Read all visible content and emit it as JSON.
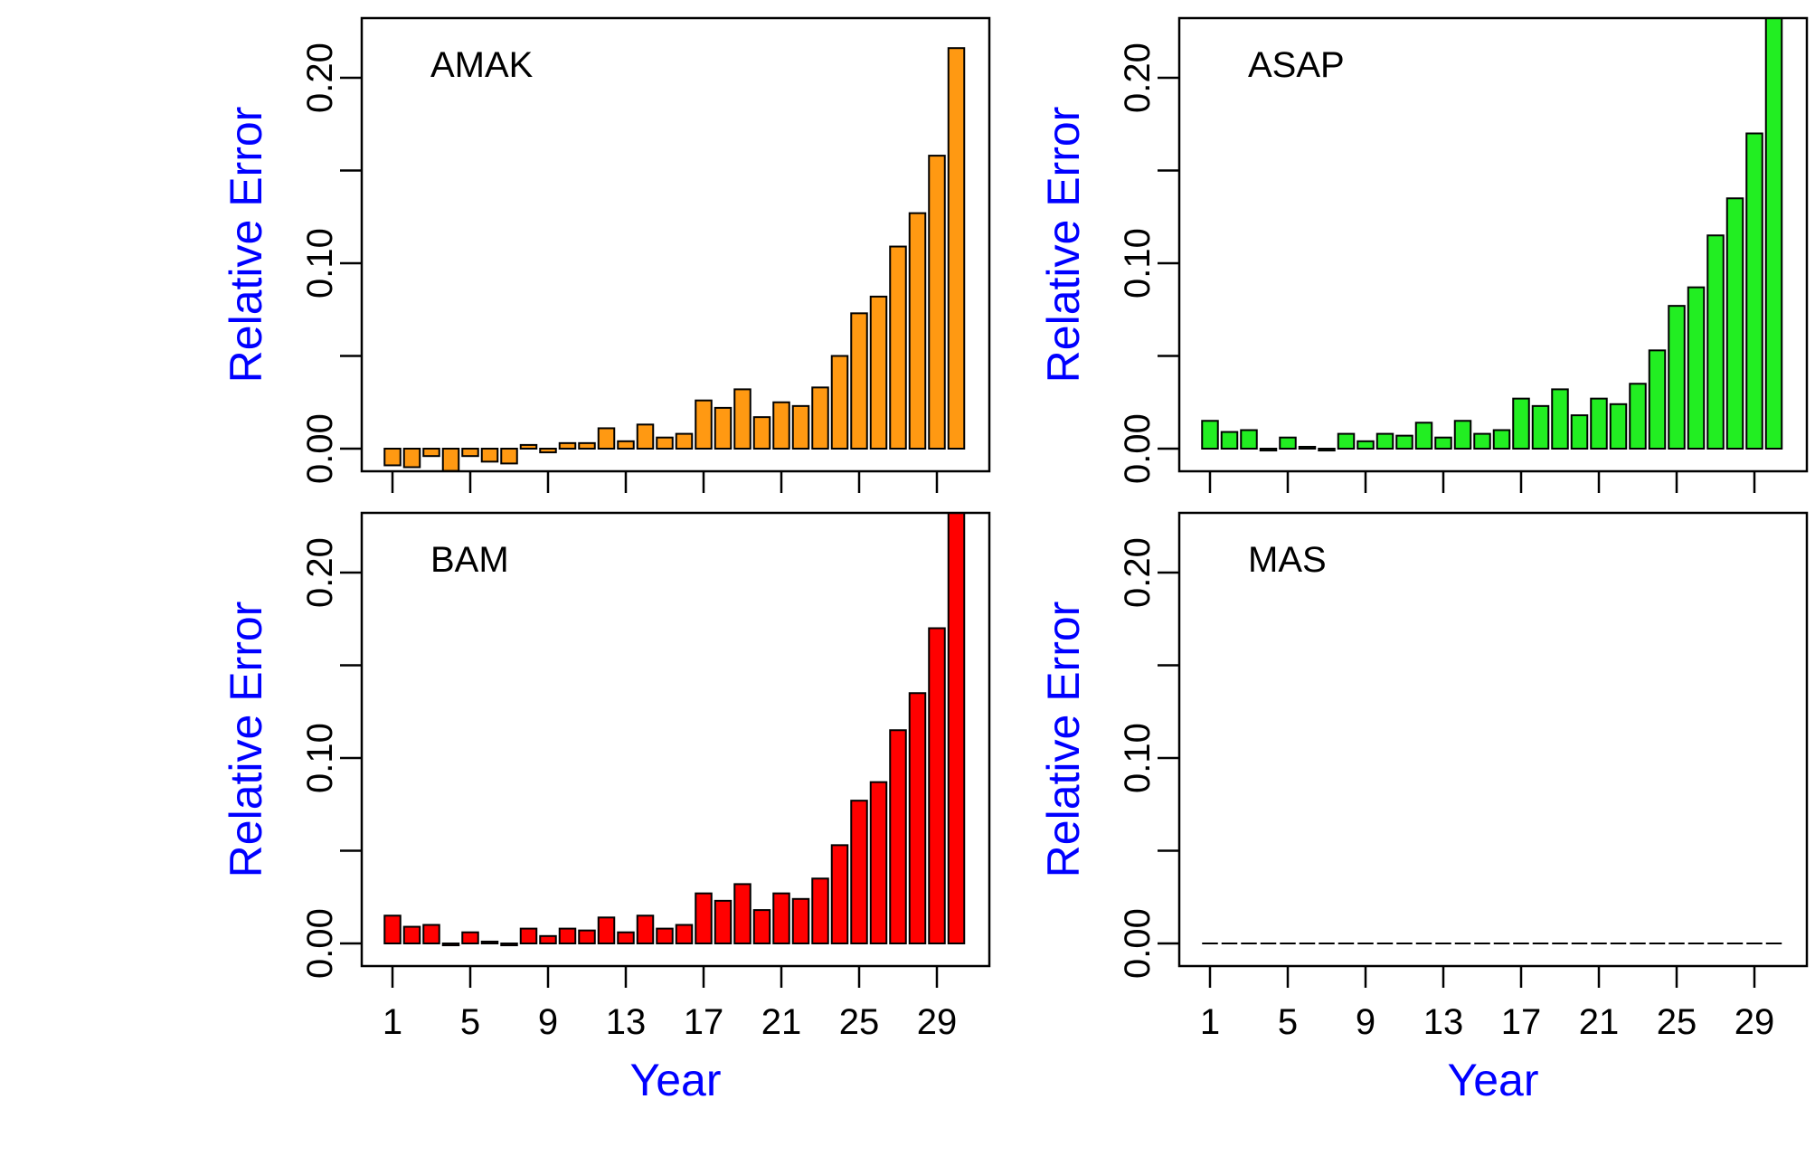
{
  "figure": {
    "axis_title_color": "#0000FF",
    "frame_color": "#000000"
  },
  "chart_data": [
    {
      "type": "bar",
      "panel_label": "AMAK",
      "fill": "#FF9912",
      "x": [
        1,
        2,
        3,
        4,
        5,
        6,
        7,
        8,
        9,
        10,
        11,
        12,
        13,
        14,
        15,
        16,
        17,
        18,
        19,
        20,
        21,
        22,
        23,
        24,
        25,
        26,
        27,
        28,
        29,
        30
      ],
      "values": [
        -0.009,
        -0.01,
        -0.004,
        -0.012,
        -0.004,
        -0.007,
        -0.008,
        0.002,
        -0.002,
        0.003,
        0.003,
        0.011,
        0.004,
        0.013,
        0.006,
        0.008,
        0.026,
        0.022,
        0.032,
        0.017,
        0.025,
        0.023,
        0.033,
        0.05,
        0.073,
        0.082,
        0.109,
        0.127,
        0.158,
        0.216
      ],
      "xlabel": "",
      "ylabel": "Relative Error",
      "x_tick_labels": [],
      "y_tick_labels": [
        "0.00",
        "0.10",
        "0.20"
      ],
      "y_minor_ticks": [
        0.05,
        0.15
      ],
      "ylim": [
        -0.012,
        0.233
      ]
    },
    {
      "type": "bar",
      "panel_label": "ASAP",
      "fill": "#22EE22",
      "x": [
        1,
        2,
        3,
        4,
        5,
        6,
        7,
        8,
        9,
        10,
        11,
        12,
        13,
        14,
        15,
        16,
        17,
        18,
        19,
        20,
        21,
        22,
        23,
        24,
        25,
        26,
        27,
        28,
        29,
        30
      ],
      "values": [
        0.015,
        0.009,
        0.01,
        -0.001,
        0.006,
        0.001,
        -0.001,
        0.008,
        0.004,
        0.008,
        0.007,
        0.014,
        0.006,
        0.015,
        0.008,
        0.01,
        0.027,
        0.023,
        0.032,
        0.018,
        0.027,
        0.024,
        0.035,
        0.053,
        0.077,
        0.087,
        0.115,
        0.135,
        0.17,
        0.235
      ],
      "xlabel": "",
      "ylabel": "Relative Error",
      "x_tick_labels": [],
      "y_tick_labels": [
        "0.00",
        "0.10",
        "0.20"
      ],
      "y_minor_ticks": [
        0.05,
        0.15
      ],
      "ylim": [
        -0.012,
        0.233
      ]
    },
    {
      "type": "bar",
      "panel_label": "BAM",
      "fill": "#FF0000",
      "x": [
        1,
        2,
        3,
        4,
        5,
        6,
        7,
        8,
        9,
        10,
        11,
        12,
        13,
        14,
        15,
        16,
        17,
        18,
        19,
        20,
        21,
        22,
        23,
        24,
        25,
        26,
        27,
        28,
        29,
        30
      ],
      "values": [
        0.015,
        0.009,
        0.01,
        -0.001,
        0.006,
        0.001,
        -0.001,
        0.008,
        0.004,
        0.008,
        0.007,
        0.014,
        0.006,
        0.015,
        0.008,
        0.01,
        0.027,
        0.023,
        0.032,
        0.018,
        0.027,
        0.024,
        0.035,
        0.053,
        0.077,
        0.087,
        0.115,
        0.135,
        0.17,
        0.235
      ],
      "xlabel": "Year",
      "ylabel": "Relative Error",
      "x_tick_labels": [
        "1",
        "5",
        "9",
        "13",
        "17",
        "21",
        "25",
        "29"
      ],
      "y_tick_labels": [
        "0.00",
        "0.10",
        "0.20"
      ],
      "y_minor_ticks": [
        0.05,
        0.15
      ],
      "ylim": [
        -0.012,
        0.233
      ]
    },
    {
      "type": "bar",
      "panel_label": "MAS",
      "fill": "#000000",
      "x": [
        1,
        2,
        3,
        4,
        5,
        6,
        7,
        8,
        9,
        10,
        11,
        12,
        13,
        14,
        15,
        16,
        17,
        18,
        19,
        20,
        21,
        22,
        23,
        24,
        25,
        26,
        27,
        28,
        29,
        30
      ],
      "values": [
        0,
        0,
        0,
        0,
        0,
        0,
        0,
        0,
        0,
        0,
        0,
        0,
        0,
        0,
        0,
        0,
        0,
        0,
        0,
        0,
        0,
        0,
        0,
        0,
        0,
        0,
        0,
        0,
        0,
        0
      ],
      "xlabel": "Year",
      "ylabel": "Relative Error",
      "x_tick_labels": [
        "1",
        "5",
        "9",
        "13",
        "17",
        "21",
        "25",
        "29"
      ],
      "y_tick_labels": [
        "0.00",
        "0.10",
        "0.20"
      ],
      "y_minor_ticks": [
        0.05,
        0.15
      ],
      "ylim": [
        -0.012,
        0.233
      ]
    }
  ]
}
